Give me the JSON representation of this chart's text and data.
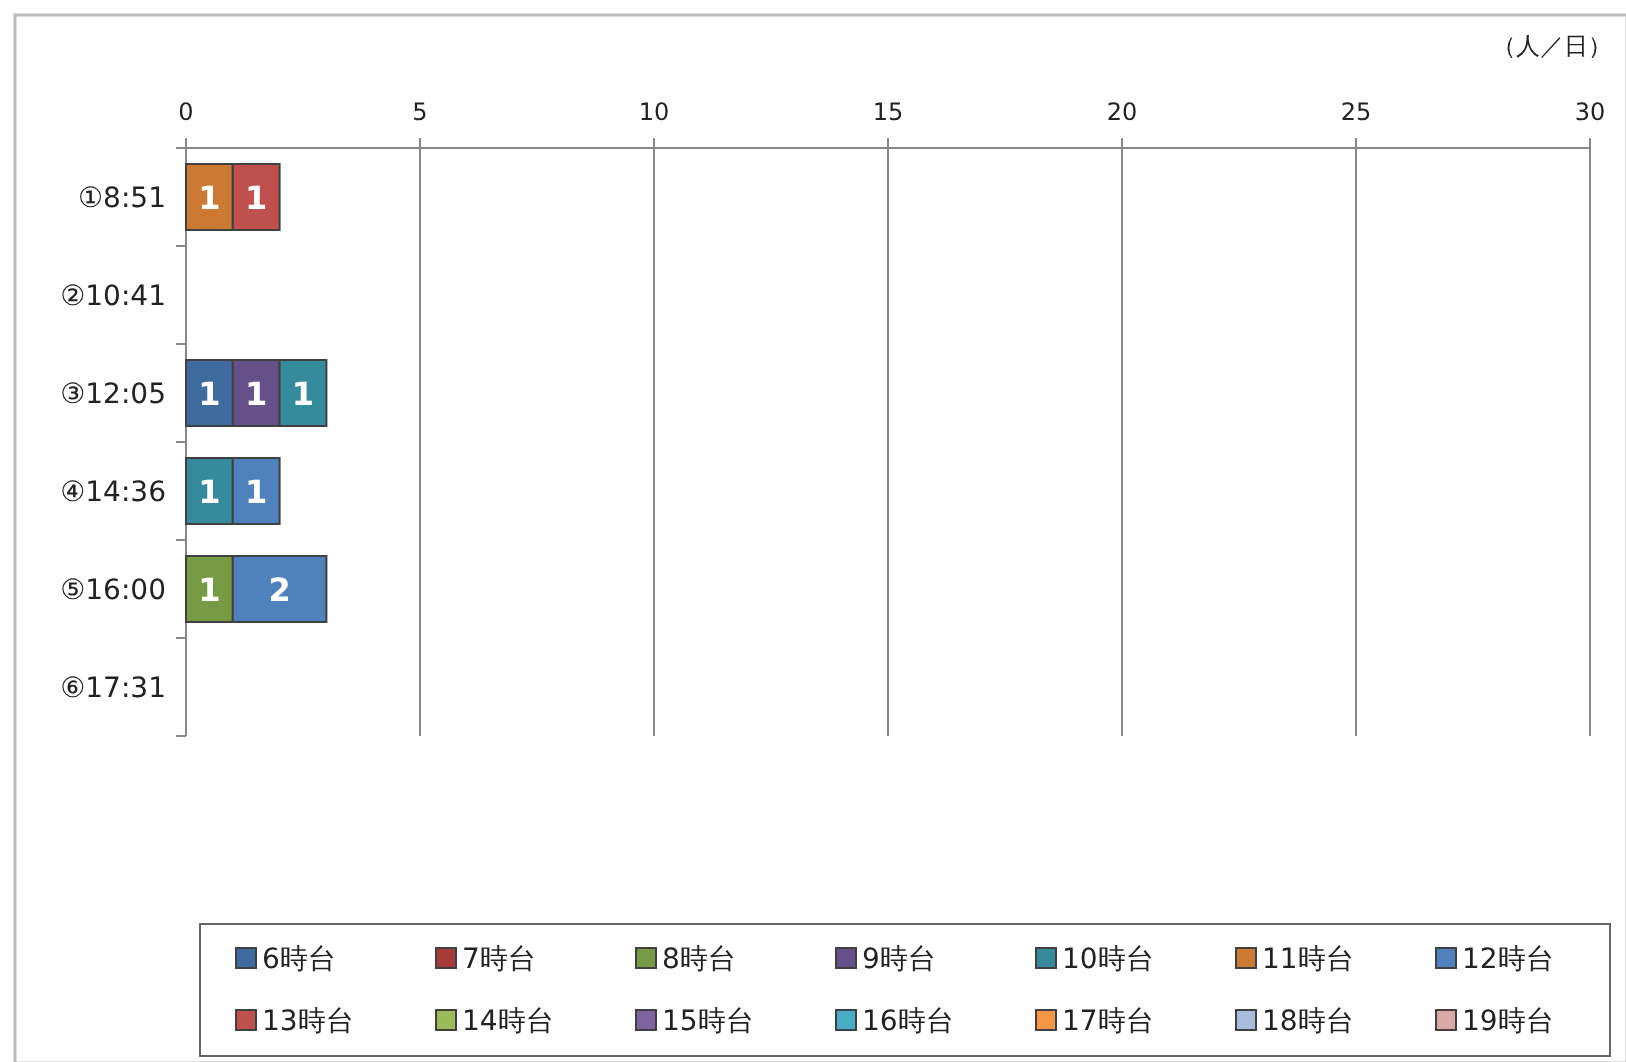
{
  "chart_data": {
    "type": "bar",
    "orientation": "horizontal",
    "stacked": true,
    "data_labels": true,
    "grid": "x",
    "legend": "bottom",
    "xlabel": "（人／日）",
    "categories": [
      "①8:51",
      "②10:41",
      "③12:05",
      "④14:36",
      "⑤16:00",
      "⑥17:31"
    ],
    "xlim": [
      0,
      30
    ],
    "xticks": [
      0,
      5,
      10,
      15,
      20,
      25,
      30
    ],
    "series": [
      {
        "name": "6時台",
        "color": "#3f6aa0",
        "values": [
          null,
          null,
          1,
          null,
          null,
          null
        ]
      },
      {
        "name": "7時台",
        "color": "#a63c3a",
        "values": [
          null,
          null,
          null,
          null,
          null,
          null
        ]
      },
      {
        "name": "8時台",
        "color": "#779b45",
        "values": [
          null,
          null,
          null,
          null,
          1,
          null
        ]
      },
      {
        "name": "9時台",
        "color": "#65508a",
        "values": [
          null,
          null,
          1,
          null,
          null,
          null
        ]
      },
      {
        "name": "10時台",
        "color": "#358a9b",
        "values": [
          null,
          null,
          1,
          1,
          null,
          null
        ]
      },
      {
        "name": "11時台",
        "color": "#cc7a33",
        "values": [
          1,
          null,
          null,
          null,
          null,
          null
        ]
      },
      {
        "name": "12時台",
        "color": "#4f81bd",
        "values": [
          null,
          null,
          null,
          1,
          2,
          null
        ]
      },
      {
        "name": "13時台",
        "color": "#c0504d",
        "values": [
          1,
          null,
          null,
          null,
          null,
          null
        ]
      },
      {
        "name": "14時台",
        "color": "#9bbb59",
        "values": [
          null,
          null,
          null,
          null,
          null,
          null
        ]
      },
      {
        "name": "15時台",
        "color": "#8064a2",
        "values": [
          null,
          null,
          null,
          null,
          null,
          null
        ]
      },
      {
        "name": "16時台",
        "color": "#4bacc6",
        "values": [
          null,
          null,
          null,
          null,
          null,
          null
        ]
      },
      {
        "name": "17時台",
        "color": "#f79646",
        "values": [
          null,
          null,
          null,
          null,
          null,
          null
        ]
      },
      {
        "name": "18時台",
        "color": "#a9bcd9",
        "values": [
          null,
          null,
          null,
          null,
          null,
          null
        ]
      },
      {
        "name": "19時台",
        "color": "#d9a9a8",
        "values": [
          null,
          null,
          null,
          null,
          null,
          null
        ]
      }
    ]
  }
}
